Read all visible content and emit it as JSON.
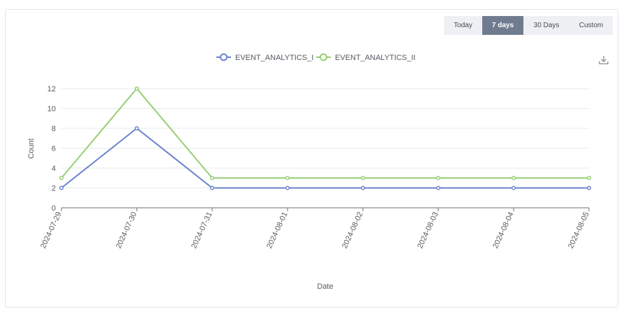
{
  "range_selector": {
    "options": [
      "Today",
      "7 days",
      "30 Days",
      "Custom"
    ],
    "selected": "7 days"
  },
  "toolbar": {
    "download_icon": "download-icon"
  },
  "colors": {
    "series_1": "#6b82cc",
    "series_2": "#97cd75",
    "active_tab": "#6f7b8e"
  },
  "chart_data": {
    "type": "line",
    "x": [
      "2024-07-29",
      "2024-07-30",
      "2024-07-31",
      "2024-08-01",
      "2024-08-02",
      "2024-08-03",
      "2024-08-04",
      "2024-08-05"
    ],
    "series": [
      {
        "name": "EVENT_ANALYTICS_I",
        "values": [
          2,
          8,
          2,
          2,
          2,
          2,
          2,
          2
        ]
      },
      {
        "name": "EVENT_ANALYTICS_II",
        "values": [
          3,
          12,
          3,
          3,
          3,
          3,
          3,
          3
        ]
      }
    ],
    "xlabel": "Date",
    "ylabel": "Count",
    "ylim": [
      0,
      12
    ],
    "yticks": [
      0,
      2,
      4,
      6,
      8,
      10,
      12
    ],
    "grid": true,
    "legend": "top-center"
  }
}
